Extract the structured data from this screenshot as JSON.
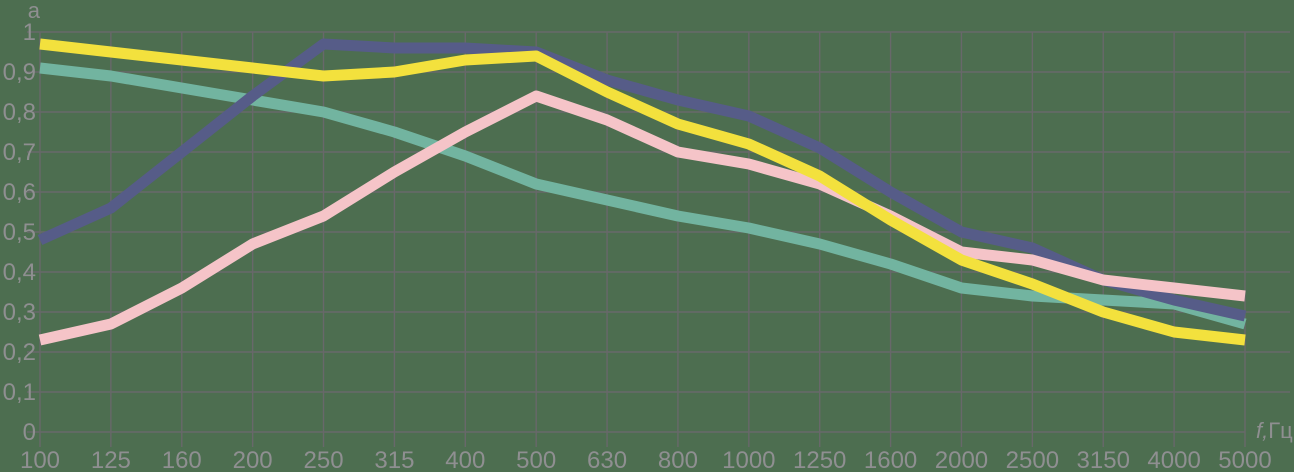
{
  "chart_data": {
    "type": "line",
    "title": "",
    "ylabel": "a",
    "xlabel": "f,Гц",
    "xlabel_prefix": "f,",
    "xlabel_unit": "Гц",
    "ylim": [
      0,
      1
    ],
    "grid": true,
    "legend": "none",
    "background": "#4d6e50",
    "grid_color": "#68686a",
    "label_color": "#8f8f91",
    "categories": [
      100,
      125,
      160,
      200,
      250,
      315,
      400,
      500,
      630,
      800,
      1000,
      1250,
      1600,
      2000,
      2500,
      3150,
      4000,
      5000
    ],
    "x_tick_labels": [
      "100",
      "125",
      "160",
      "200",
      "250",
      "315",
      "400",
      "500",
      "630",
      "800",
      "1000",
      "1250",
      "1600",
      "2000",
      "2500",
      "3150",
      "4000",
      "5000"
    ],
    "y_tick_labels": [
      "0",
      "0,1",
      "0,2",
      "0,3",
      "0,4",
      "0,5",
      "0,6",
      "0,7",
      "0,8",
      "0,9",
      "1"
    ],
    "series": [
      {
        "name": "teal",
        "color": "#72b4a0",
        "values": [
          0.91,
          0.89,
          0.86,
          0.83,
          0.8,
          0.75,
          0.69,
          0.62,
          0.58,
          0.54,
          0.51,
          0.47,
          0.42,
          0.36,
          0.34,
          0.33,
          0.32,
          0.27
        ]
      },
      {
        "name": "dark-blue",
        "color": "#565c88",
        "values": [
          0.48,
          0.56,
          0.7,
          0.84,
          0.97,
          0.96,
          0.96,
          0.95,
          0.88,
          0.83,
          0.79,
          0.71,
          0.6,
          0.5,
          0.46,
          0.38,
          0.33,
          0.29
        ]
      },
      {
        "name": "pink",
        "color": "#f5c4c8",
        "values": [
          0.23,
          0.27,
          0.36,
          0.47,
          0.54,
          0.65,
          0.75,
          0.84,
          0.78,
          0.7,
          0.67,
          0.62,
          0.54,
          0.45,
          0.43,
          0.38,
          0.36,
          0.34
        ]
      },
      {
        "name": "yellow",
        "color": "#f3e13d",
        "values": [
          0.97,
          0.95,
          0.93,
          0.91,
          0.89,
          0.9,
          0.93,
          0.94,
          0.85,
          0.77,
          0.72,
          0.64,
          0.53,
          0.43,
          0.37,
          0.3,
          0.25,
          0.23
        ]
      }
    ]
  }
}
